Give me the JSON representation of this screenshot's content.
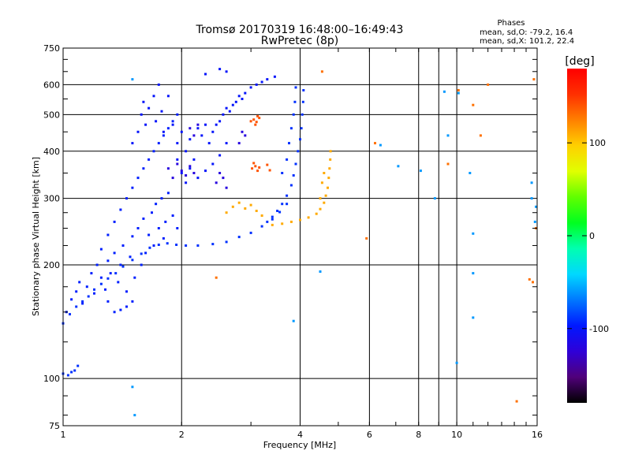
{
  "chart_data": {
    "type": "scatter",
    "title": "Tromsø 20170319 16:48:00–16:49:43",
    "subtitle": "RwPretec (8p)",
    "stats": {
      "heading": "Phases",
      "line_o": "mean, sd,O: -79.2, 16.4",
      "line_x": "mean, sd,X: 101.2, 22.4"
    },
    "xlabel": "Frequency [MHz]",
    "ylabel": "Stationary phase Virtual Height [km]",
    "x_scale": "log",
    "y_scale": "log",
    "xlim": [
      1,
      16
    ],
    "ylim": [
      75,
      750
    ],
    "grid": true,
    "x_ticks": [
      {
        "value": 1,
        "label": "1"
      },
      {
        "value": 2,
        "label": "2"
      },
      {
        "value": 4,
        "label": "4"
      },
      {
        "value": 6,
        "label": "6"
      },
      {
        "value": 8,
        "label": "8"
      },
      {
        "value": 10,
        "label": "10"
      },
      {
        "value": 16,
        "label": "16"
      }
    ],
    "x_minor_gridlines": [
      9
    ],
    "y_ticks": [
      {
        "value": 75,
        "label": "75"
      },
      {
        "value": 100,
        "label": "100"
      },
      {
        "value": 200,
        "label": "200"
      },
      {
        "value": 300,
        "label": "300"
      },
      {
        "value": 400,
        "label": "400"
      },
      {
        "value": 500,
        "label": "500"
      },
      {
        "value": 600,
        "label": "600"
      },
      {
        "value": 750,
        "label": "750"
      }
    ],
    "colorbar": {
      "label": "[deg]",
      "range": [
        -180,
        180
      ],
      "ticks": [
        {
          "value": 100,
          "label": "100"
        },
        {
          "value": 0,
          "label": "0"
        },
        {
          "value": -100,
          "label": "-100"
        }
      ],
      "stops": [
        "#000000",
        "#50007a",
        "#2f00d8",
        "#0018ff",
        "#0078ff",
        "#00d8ff",
        "#00ffb0",
        "#00ff20",
        "#60ff00",
        "#e0ff00",
        "#ffd000",
        "#ff8000",
        "#ff3000",
        "#ff0000"
      ]
    },
    "series": [
      {
        "trace": "low_layer_trace",
        "phase": -90,
        "points": [
          [
            1.0,
            103
          ],
          [
            1.03,
            102
          ],
          [
            1.05,
            104
          ],
          [
            1.07,
            105
          ],
          [
            1.09,
            108
          ],
          [
            1.0,
            140
          ],
          [
            1.04,
            148
          ],
          [
            1.08,
            155
          ],
          [
            1.12,
            160
          ],
          [
            1.16,
            165
          ],
          [
            1.2,
            172
          ],
          [
            1.25,
            178
          ],
          [
            1.3,
            184
          ],
          [
            1.36,
            190
          ],
          [
            1.42,
            198
          ],
          [
            1.5,
            206
          ],
          [
            1.58,
            214
          ],
          [
            1.66,
            222
          ],
          [
            1.75,
            226
          ],
          [
            1.84,
            228
          ],
          [
            1.94,
            226
          ],
          [
            2.05,
            225
          ],
          [
            2.2,
            225
          ],
          [
            2.4,
            227
          ],
          [
            2.6,
            230
          ],
          [
            2.8,
            237
          ],
          [
            3.0,
            243
          ],
          [
            3.2,
            253
          ],
          [
            3.4,
            264
          ],
          [
            3.55,
            276
          ],
          [
            3.7,
            290
          ]
        ]
      },
      {
        "trace": "lower_cloud",
        "phase": -95,
        "points": [
          [
            1.02,
            150
          ],
          [
            1.05,
            162
          ],
          [
            1.08,
            170
          ],
          [
            1.1,
            180
          ],
          [
            1.12,
            158
          ],
          [
            1.15,
            175
          ],
          [
            1.18,
            190
          ],
          [
            1.2,
            168
          ],
          [
            1.22,
            200
          ],
          [
            1.25,
            185
          ],
          [
            1.28,
            172
          ],
          [
            1.3,
            205
          ],
          [
            1.32,
            190
          ],
          [
            1.35,
            215
          ],
          [
            1.38,
            180
          ],
          [
            1.4,
            200
          ],
          [
            1.42,
            225
          ],
          [
            1.45,
            170
          ],
          [
            1.48,
            210
          ],
          [
            1.5,
            238
          ],
          [
            1.52,
            185
          ],
          [
            1.55,
            250
          ],
          [
            1.58,
            200
          ],
          [
            1.6,
            265
          ],
          [
            1.62,
            215
          ],
          [
            1.65,
            240
          ],
          [
            1.68,
            275
          ],
          [
            1.7,
            225
          ],
          [
            1.72,
            290
          ],
          [
            1.75,
            250
          ],
          [
            1.78,
            300
          ],
          [
            1.8,
            235
          ],
          [
            1.82,
            260
          ],
          [
            1.85,
            310
          ],
          [
            1.9,
            270
          ],
          [
            1.95,
            250
          ],
          [
            1.3,
            160
          ],
          [
            1.35,
            150
          ],
          [
            1.4,
            152
          ],
          [
            1.45,
            155
          ],
          [
            1.5,
            160
          ],
          [
            1.25,
            220
          ],
          [
            1.3,
            240
          ],
          [
            1.35,
            260
          ],
          [
            1.4,
            280
          ],
          [
            1.45,
            300
          ],
          [
            1.5,
            320
          ],
          [
            1.55,
            340
          ],
          [
            1.6,
            360
          ],
          [
            1.65,
            380
          ],
          [
            1.7,
            400
          ],
          [
            1.75,
            420
          ],
          [
            1.8,
            440
          ],
          [
            1.85,
            460
          ],
          [
            1.9,
            480
          ],
          [
            1.95,
            500
          ]
        ]
      },
      {
        "trace": "upper_cloud",
        "phase": -100,
        "points": [
          [
            1.5,
            420
          ],
          [
            1.55,
            450
          ],
          [
            1.58,
            500
          ],
          [
            1.6,
            540
          ],
          [
            1.62,
            470
          ],
          [
            1.65,
            520
          ],
          [
            1.7,
            560
          ],
          [
            1.72,
            480
          ],
          [
            1.75,
            600
          ],
          [
            1.78,
            510
          ],
          [
            1.8,
            450
          ],
          [
            1.85,
            560
          ],
          [
            1.9,
            470
          ],
          [
            1.95,
            420
          ],
          [
            2.0,
            450
          ],
          [
            2.05,
            400
          ],
          [
            2.1,
            430
          ],
          [
            2.15,
            380
          ],
          [
            2.2,
            460
          ],
          [
            2.25,
            440
          ],
          [
            2.3,
            470
          ],
          [
            2.35,
            420
          ],
          [
            2.4,
            450
          ],
          [
            2.45,
            470
          ],
          [
            2.5,
            480
          ],
          [
            2.55,
            500
          ],
          [
            2.6,
            520
          ],
          [
            2.65,
            510
          ],
          [
            2.7,
            530
          ],
          [
            2.75,
            540
          ],
          [
            2.8,
            560
          ],
          [
            2.85,
            550
          ],
          [
            2.9,
            570
          ],
          [
            3.0,
            590
          ],
          [
            3.1,
            600
          ],
          [
            3.2,
            610
          ],
          [
            3.3,
            620
          ],
          [
            3.45,
            630
          ],
          [
            2.3,
            640
          ],
          [
            2.5,
            660
          ],
          [
            2.6,
            650
          ],
          [
            1.95,
            380
          ],
          [
            2.0,
            350
          ],
          [
            2.05,
            330
          ],
          [
            2.1,
            360
          ],
          [
            2.2,
            340
          ],
          [
            2.3,
            355
          ],
          [
            2.4,
            370
          ],
          [
            2.5,
            390
          ],
          [
            2.6,
            420
          ]
        ]
      },
      {
        "trace": "purple_patch",
        "phase": -120,
        "points": [
          [
            1.85,
            360
          ],
          [
            1.9,
            340
          ],
          [
            1.95,
            370
          ],
          [
            2.0,
            355
          ],
          [
            2.05,
            345
          ],
          [
            2.1,
            365
          ],
          [
            2.15,
            350
          ],
          [
            2.45,
            330
          ],
          [
            2.5,
            350
          ],
          [
            2.55,
            340
          ],
          [
            2.6,
            320
          ],
          [
            2.1,
            460
          ],
          [
            2.15,
            440
          ],
          [
            2.2,
            470
          ],
          [
            2.8,
            420
          ],
          [
            2.85,
            450
          ],
          [
            2.9,
            440
          ]
        ]
      },
      {
        "trace": "rising_trace",
        "phase": -90,
        "points": [
          [
            3.3,
            260
          ],
          [
            3.4,
            268
          ],
          [
            3.5,
            278
          ],
          [
            3.6,
            290
          ],
          [
            3.7,
            305
          ],
          [
            3.8,
            325
          ],
          [
            3.85,
            345
          ],
          [
            3.9,
            370
          ],
          [
            3.95,
            400
          ],
          [
            4.0,
            430
          ],
          [
            4.03,
            460
          ],
          [
            4.05,
            500
          ],
          [
            4.07,
            540
          ],
          [
            4.08,
            580
          ],
          [
            3.75,
            420
          ],
          [
            3.8,
            460
          ],
          [
            3.85,
            500
          ],
          [
            3.88,
            540
          ],
          [
            3.9,
            590
          ],
          [
            3.6,
            350
          ],
          [
            3.7,
            380
          ]
        ]
      },
      {
        "trace": "x_mode_trace",
        "phase": 110,
        "points": [
          [
            3.4,
            255
          ],
          [
            3.6,
            257
          ],
          [
            3.8,
            260
          ],
          [
            4.0,
            263
          ],
          [
            4.2,
            267
          ],
          [
            4.4,
            273
          ],
          [
            4.5,
            281
          ],
          [
            4.6,
            292
          ],
          [
            4.65,
            305
          ],
          [
            4.7,
            320
          ],
          [
            4.73,
            340
          ],
          [
            4.75,
            360
          ],
          [
            4.77,
            380
          ],
          [
            4.78,
            400
          ],
          [
            4.5,
            300
          ],
          [
            4.55,
            330
          ],
          [
            4.6,
            350
          ],
          [
            2.6,
            275
          ],
          [
            2.7,
            285
          ],
          [
            2.8,
            292
          ],
          [
            2.9,
            282
          ],
          [
            3.0,
            288
          ],
          [
            3.1,
            278
          ],
          [
            3.2,
            270
          ]
        ]
      },
      {
        "trace": "yellow_patches",
        "phase": 140,
        "points": [
          [
            3.0,
            480
          ],
          [
            3.05,
            485
          ],
          [
            3.1,
            478
          ],
          [
            3.15,
            490
          ],
          [
            3.08,
            470
          ],
          [
            3.12,
            495
          ],
          [
            3.02,
            360
          ],
          [
            3.05,
            372
          ],
          [
            3.08,
            365
          ],
          [
            3.12,
            355
          ],
          [
            3.15,
            362
          ],
          [
            3.3,
            368
          ],
          [
            3.35,
            356
          ]
        ]
      },
      {
        "trace": "scattered",
        "phase": -60,
        "points": [
          [
            1.5,
            620
          ],
          [
            1.5,
            95
          ],
          [
            1.52,
            80
          ],
          [
            3.85,
            142
          ],
          [
            4.5,
            192
          ],
          [
            6.4,
            415
          ],
          [
            7.1,
            365
          ],
          [
            8.1,
            355
          ],
          [
            8.8,
            300
          ],
          [
            9.3,
            575
          ],
          [
            9.5,
            440
          ],
          [
            10.1,
            570
          ],
          [
            10.0,
            110
          ],
          [
            10.8,
            350
          ],
          [
            11.0,
            242
          ],
          [
            11.0,
            145
          ],
          [
            11.0,
            190
          ],
          [
            15.5,
            330
          ],
          [
            15.5,
            300
          ],
          [
            15.8,
            260
          ],
          [
            15.9,
            285
          ]
        ]
      },
      {
        "trace": "scattered_warm",
        "phase": 130,
        "points": [
          [
            2.45,
            185
          ],
          [
            4.55,
            650
          ],
          [
            5.9,
            235
          ],
          [
            6.2,
            420
          ],
          [
            9.5,
            370
          ],
          [
            10.1,
            580
          ],
          [
            11.0,
            530
          ],
          [
            12.0,
            600
          ],
          [
            14.2,
            87
          ],
          [
            15.7,
            620
          ],
          [
            15.6,
            180
          ],
          [
            15.3,
            183
          ],
          [
            15.9,
            250
          ],
          [
            11.5,
            440
          ]
        ]
      }
    ]
  }
}
